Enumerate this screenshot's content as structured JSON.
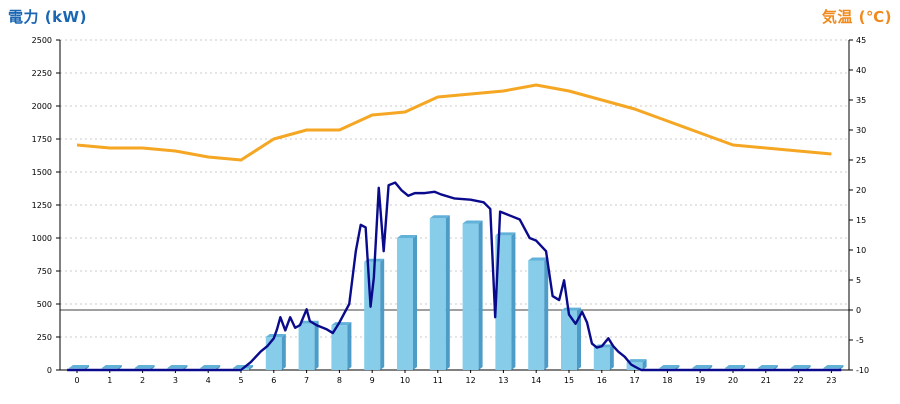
{
  "chart_data": {
    "type": "bar",
    "left_axis_title": "電力 (kW)",
    "right_axis_title": "気温 (℃)",
    "colors": {
      "left_title": "#1a66b3",
      "right_title": "#f08a1c",
      "bar_front": "#87cdea",
      "bar_side": "#4d9cc7",
      "bar_top": "#62b1d8",
      "power_line": "#0a0a8c",
      "temp_line": "#f5a623",
      "grid": "#bbbbbb",
      "zero_line": "#000000"
    },
    "categories": [
      "0",
      "1",
      "2",
      "3",
      "4",
      "5",
      "6",
      "7",
      "8",
      "9",
      "10",
      "11",
      "12",
      "13",
      "14",
      "15",
      "16",
      "17",
      "18",
      "19",
      "20",
      "21",
      "22",
      "23"
    ],
    "y_left": {
      "min": 0,
      "max": 2500,
      "step": 250,
      "ticks": [
        "0",
        "250",
        "500",
        "750",
        "1000",
        "1250",
        "1500",
        "1750",
        "2000",
        "2250",
        "2500"
      ]
    },
    "y_right": {
      "min": -10,
      "max": 45,
      "step": 5,
      "ticks": [
        "-10",
        "-5",
        "0",
        "5",
        "10",
        "15",
        "20",
        "25",
        "30",
        "35",
        "40",
        "45"
      ]
    },
    "grid": true,
    "series": [
      {
        "kind": "bar",
        "axis": "left",
        "values": [
          0,
          0,
          0,
          0,
          0,
          0,
          250,
          350,
          340,
          820,
          1000,
          1150,
          1110,
          1020,
          830,
          450,
          170,
          60,
          0,
          0,
          0,
          0,
          0,
          0
        ]
      },
      {
        "kind": "line",
        "axis": "left",
        "points": [
          [
            -0.3,
            0
          ],
          [
            5.0,
            0
          ],
          [
            5.3,
            60
          ],
          [
            5.6,
            140
          ],
          [
            5.8,
            180
          ],
          [
            6.0,
            240
          ],
          [
            6.1,
            310
          ],
          [
            6.2,
            400
          ],
          [
            6.35,
            300
          ],
          [
            6.5,
            400
          ],
          [
            6.65,
            320
          ],
          [
            6.8,
            340
          ],
          [
            7.0,
            460
          ],
          [
            7.1,
            370
          ],
          [
            7.3,
            340
          ],
          [
            7.6,
            310
          ],
          [
            7.8,
            280
          ],
          [
            8.0,
            360
          ],
          [
            8.3,
            500
          ],
          [
            8.5,
            900
          ],
          [
            8.65,
            1100
          ],
          [
            8.8,
            1080
          ],
          [
            8.95,
            480
          ],
          [
            9.05,
            700
          ],
          [
            9.2,
            1380
          ],
          [
            9.35,
            900
          ],
          [
            9.5,
            1400
          ],
          [
            9.7,
            1420
          ],
          [
            9.9,
            1360
          ],
          [
            10.1,
            1320
          ],
          [
            10.3,
            1340
          ],
          [
            10.6,
            1340
          ],
          [
            10.9,
            1350
          ],
          [
            11.1,
            1330
          ],
          [
            11.5,
            1300
          ],
          [
            12.0,
            1290
          ],
          [
            12.4,
            1270
          ],
          [
            12.6,
            1220
          ],
          [
            12.75,
            400
          ],
          [
            12.9,
            1200
          ],
          [
            13.2,
            1170
          ],
          [
            13.5,
            1140
          ],
          [
            13.8,
            1000
          ],
          [
            14.0,
            980
          ],
          [
            14.3,
            900
          ],
          [
            14.5,
            560
          ],
          [
            14.7,
            530
          ],
          [
            14.85,
            680
          ],
          [
            15.0,
            420
          ],
          [
            15.2,
            350
          ],
          [
            15.4,
            440
          ],
          [
            15.55,
            360
          ],
          [
            15.7,
            200
          ],
          [
            15.85,
            170
          ],
          [
            16.0,
            180
          ],
          [
            16.2,
            240
          ],
          [
            16.35,
            180
          ],
          [
            16.5,
            140
          ],
          [
            16.7,
            100
          ],
          [
            16.9,
            40
          ],
          [
            17.2,
            0
          ],
          [
            23.3,
            0
          ]
        ]
      },
      {
        "kind": "line",
        "axis": "right",
        "points": [
          [
            0,
            27.5
          ],
          [
            1,
            27
          ],
          [
            2,
            27
          ],
          [
            3,
            26.5
          ],
          [
            4,
            25.5
          ],
          [
            5,
            25
          ],
          [
            6,
            28.5
          ],
          [
            7,
            30
          ],
          [
            8,
            30
          ],
          [
            9,
            32.5
          ],
          [
            10,
            33
          ],
          [
            11,
            35.5
          ],
          [
            12,
            36
          ],
          [
            13,
            36.5
          ],
          [
            14,
            37.5
          ],
          [
            15,
            36.5
          ],
          [
            16,
            35
          ],
          [
            17,
            33.5
          ],
          [
            18,
            31.5
          ],
          [
            19,
            29.5
          ],
          [
            20,
            27.5
          ],
          [
            21,
            27
          ],
          [
            22,
            26.5
          ],
          [
            23,
            26
          ]
        ]
      }
    ]
  }
}
